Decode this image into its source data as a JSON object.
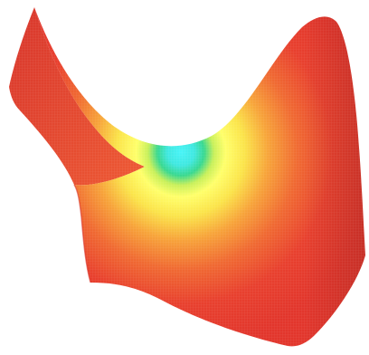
{
  "scene": {
    "subject": "saddle-surface",
    "colormap": [
      "#e8382d",
      "#f06a32",
      "#f7a43a",
      "#fbe44a",
      "#ffff6a",
      "#c8f05a",
      "#38d890",
      "#40f0f4"
    ],
    "background": "#ffffff",
    "edge_color": "#e0412e",
    "mesh": true
  }
}
